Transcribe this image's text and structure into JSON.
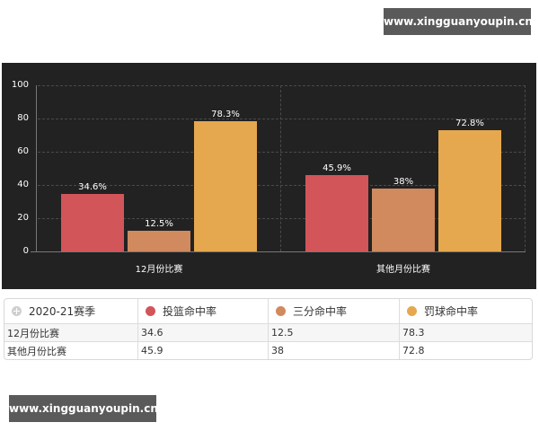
{
  "watermarks": {
    "top": "www.xingguanyoupin.cn",
    "bottom": "www.xingguanyoupin.cn"
  },
  "chart_data": {
    "type": "bar",
    "title": "",
    "xlabel": "",
    "ylabel": "",
    "ylim": [
      0,
      100
    ],
    "yticks": [
      "0",
      "20",
      "40",
      "60",
      "80",
      "100"
    ],
    "grid": true,
    "categories": [
      "12月份比赛",
      "其他月份比赛"
    ],
    "series": [
      {
        "name": "投篮命中率",
        "color": "#d2555a",
        "values": [
          34.6,
          45.9
        ],
        "labels": [
          "34.6%",
          "45.9%"
        ]
      },
      {
        "name": "三分命中率",
        "color": "#d08a5e",
        "values": [
          12.5,
          38
        ],
        "labels": [
          "12.5%",
          "38%"
        ]
      },
      {
        "name": "罚球命中率",
        "color": "#e6a84e",
        "values": [
          78.3,
          72.8
        ],
        "labels": [
          "78.3%",
          "72.8%"
        ]
      }
    ],
    "background": "#222222",
    "legend_position": "table-below"
  },
  "table": {
    "header": {
      "season": "2020-21赛季",
      "col1": "投篮命中率",
      "col2": "三分命中率",
      "col3": "罚球命中率"
    },
    "rows": [
      {
        "label": "12月份比赛",
        "v1": "34.6",
        "v2": "12.5",
        "v3": "78.3"
      },
      {
        "label": "其他月份比赛",
        "v1": "45.9",
        "v2": "38",
        "v3": "72.8"
      }
    ]
  }
}
